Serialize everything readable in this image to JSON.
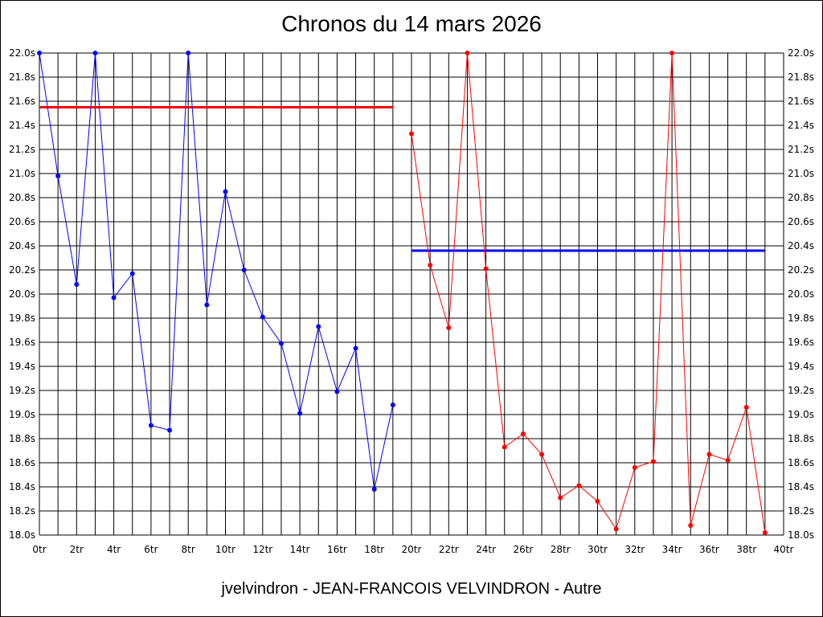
{
  "chart_data": {
    "type": "line",
    "title": "Chronos du 14 mars 2026",
    "subtitle": "jvelvindron - JEAN-FRANCOIS VELVINDRON - Autre",
    "x_ticks": [
      "0tr",
      "2tr",
      "4tr",
      "6tr",
      "8tr",
      "10tr",
      "12tr",
      "14tr",
      "16tr",
      "18tr",
      "20tr",
      "22tr",
      "24tr",
      "26tr",
      "28tr",
      "30tr",
      "32tr",
      "34tr",
      "36tr",
      "38tr",
      "40tr"
    ],
    "y_ticks": [
      "18.0s",
      "18.2s",
      "18.4s",
      "18.6s",
      "18.8s",
      "19.0s",
      "19.2s",
      "19.4s",
      "19.6s",
      "19.8s",
      "20.0s",
      "20.2s",
      "20.4s",
      "20.6s",
      "20.8s",
      "21.0s",
      "21.2s",
      "21.4s",
      "21.6s",
      "21.8s",
      "22.0s"
    ],
    "xlim": [
      0,
      40
    ],
    "ylim": [
      18.0,
      22.0
    ],
    "grid": true,
    "series": [
      {
        "color": "#0000ff",
        "x": [
          0,
          1,
          2,
          3,
          4,
          5,
          6,
          7,
          8,
          9,
          10,
          11,
          12,
          13,
          14,
          15,
          16,
          17,
          18,
          19
        ],
        "values": [
          22.0,
          20.98,
          20.08,
          22.0,
          19.97,
          20.17,
          18.91,
          18.87,
          22.0,
          19.91,
          20.85,
          20.2,
          19.81,
          19.59,
          19.01,
          19.73,
          19.19,
          19.55,
          18.38,
          19.08
        ]
      },
      {
        "color": "#ff0000",
        "x": [
          20,
          21,
          22,
          23,
          24,
          25,
          26,
          27,
          28,
          29,
          30,
          31,
          32,
          33,
          34,
          35,
          36,
          37,
          38,
          39
        ],
        "values": [
          21.33,
          20.24,
          19.72,
          22.0,
          20.21,
          18.73,
          18.84,
          18.67,
          18.31,
          18.41,
          18.28,
          18.05,
          18.56,
          18.61,
          22.0,
          18.08,
          18.67,
          18.62,
          19.06,
          18.02
        ]
      }
    ],
    "averages": [
      {
        "color": "#ff0000",
        "value": 21.55,
        "x_start": 0,
        "x_end": 19
      },
      {
        "color": "#0000ff",
        "value": 20.36,
        "x_start": 20,
        "x_end": 39
      }
    ]
  }
}
